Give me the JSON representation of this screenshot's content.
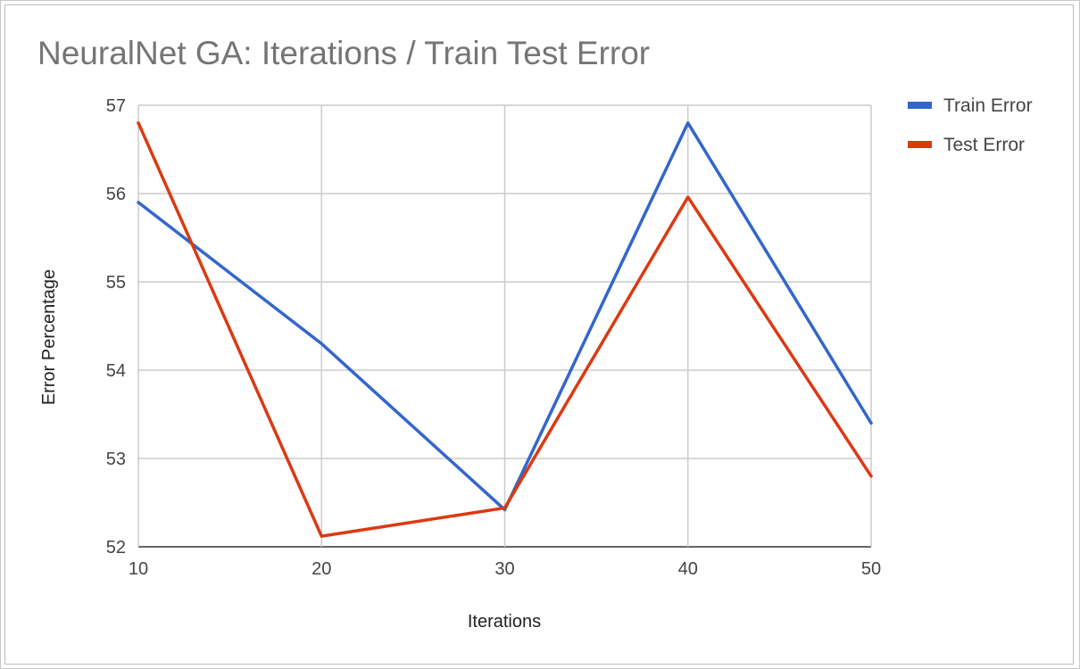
{
  "chart_data": {
    "type": "line",
    "title": "NeuralNet GA: Iterations / Train Test Error",
    "xlabel": "Iterations",
    "ylabel": "Error Percentage",
    "x": [
      10,
      20,
      30,
      40,
      50
    ],
    "xlim": [
      10,
      50
    ],
    "ylim": [
      52,
      57
    ],
    "xticks": [
      "10",
      "20",
      "30",
      "40",
      "50"
    ],
    "yticks": [
      "52",
      "53",
      "54",
      "55",
      "56",
      "57"
    ],
    "grid": true,
    "legend_position": "right",
    "series": [
      {
        "name": "Train Error",
        "color": "#3366cc",
        "values": [
          55.9,
          54.3,
          52.42,
          56.8,
          53.4
        ]
      },
      {
        "name": "Test Error",
        "color": "#dc3912",
        "values": [
          56.8,
          52.12,
          52.44,
          55.96,
          52.8
        ]
      }
    ]
  }
}
